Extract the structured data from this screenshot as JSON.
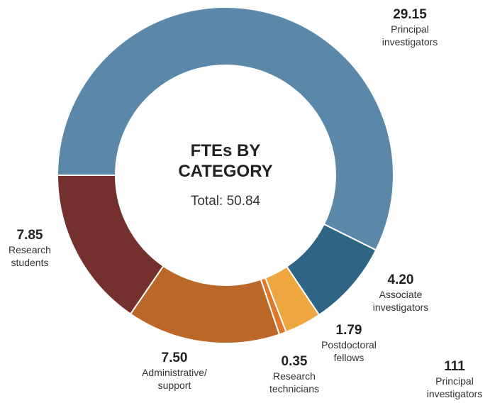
{
  "chart_data": {
    "type": "donut",
    "title": "FTEs BY CATEGORY",
    "total_label": "Total: 50.84",
    "categories": [
      "Principal investigators",
      "Associate investigators",
      "Postdoctoral fellows",
      "Research technicians",
      "Administrative/ support",
      "Research students"
    ],
    "values": [
      29.15,
      4.2,
      1.79,
      0.35,
      7.5,
      7.85
    ],
    "value_labels": [
      "29.15",
      "4.20",
      "1.79",
      "0.35",
      "7.50",
      "7.85"
    ],
    "colors": [
      "#5b87a8",
      "#2e6585",
      "#eda640",
      "#e0782c",
      "#ba6727",
      "#74302c"
    ],
    "annotation": {
      "value_label": "111",
      "text": "Principal investigators"
    }
  }
}
